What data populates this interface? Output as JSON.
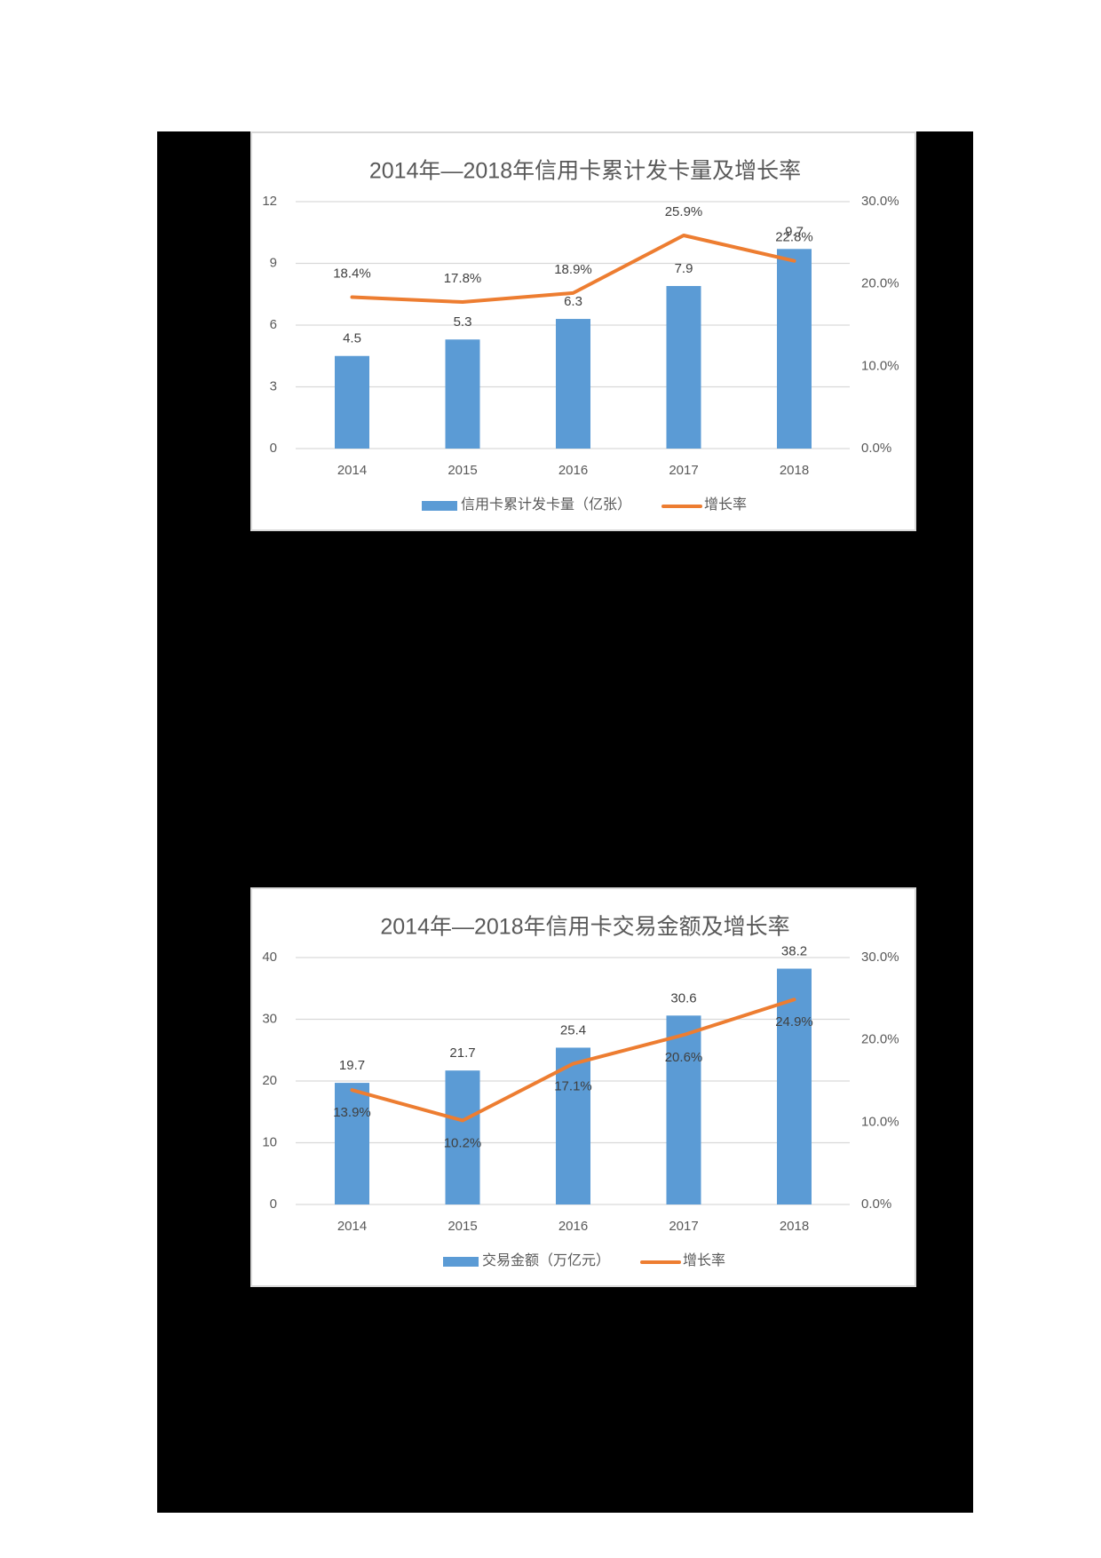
{
  "chart_data": [
    {
      "type": "bar+line",
      "title": "2014年—2018年信用卡累计发卡量及增长率",
      "categories": [
        "2014",
        "2015",
        "2016",
        "2017",
        "2018"
      ],
      "series": [
        {
          "name": "信用卡累计发卡量（亿张）",
          "type": "bar",
          "axis": "left",
          "color": "#5b9bd5",
          "values": [
            4.5,
            5.3,
            6.3,
            7.9,
            9.7
          ],
          "labels": [
            "4.5",
            "5.3",
            "6.3",
            "7.9",
            "9.7"
          ]
        },
        {
          "name": "增长率",
          "type": "line",
          "axis": "right",
          "color": "#ed7d31",
          "values": [
            18.4,
            17.8,
            18.9,
            25.9,
            22.8
          ],
          "labels": [
            "18.4%",
            "17.8%",
            "18.9%",
            "25.9%",
            "22.8%"
          ]
        }
      ],
      "left_axis": {
        "ticks": [
          "0",
          "3",
          "6",
          "9",
          "12"
        ],
        "ylim": [
          0,
          12
        ]
      },
      "right_axis": {
        "ticks": [
          "0.0%",
          "10.0%",
          "20.0%",
          "30.0%"
        ],
        "ylim": [
          0,
          30
        ]
      },
      "grid": true,
      "legend_position": "bottom"
    },
    {
      "type": "bar+line",
      "title": "2014年—2018年信用卡交易金额及增长率",
      "categories": [
        "2014",
        "2015",
        "2016",
        "2017",
        "2018"
      ],
      "series": [
        {
          "name": "交易金额（万亿元）",
          "type": "bar",
          "axis": "left",
          "color": "#5b9bd5",
          "values": [
            19.7,
            21.7,
            25.4,
            30.6,
            38.2
          ],
          "labels": [
            "19.7",
            "21.7",
            "25.4",
            "30.6",
            "38.2"
          ]
        },
        {
          "name": "增长率",
          "type": "line",
          "axis": "right",
          "color": "#ed7d31",
          "values": [
            13.9,
            10.2,
            17.1,
            20.6,
            24.9
          ],
          "labels": [
            "13.9%",
            "10.2%",
            "17.1%",
            "20.6%",
            "24.9%"
          ]
        }
      ],
      "left_axis": {
        "ticks": [
          "0",
          "10",
          "20",
          "30",
          "40"
        ],
        "ylim": [
          0,
          40
        ]
      },
      "right_axis": {
        "ticks": [
          "0.0%",
          "10.0%",
          "20.0%",
          "30.0%"
        ],
        "ylim": [
          0,
          30
        ]
      },
      "grid": true,
      "legend_position": "bottom"
    }
  ],
  "colors": {
    "bar": "#5b9bd5",
    "line": "#ed7d31",
    "grid": "#d9d9d9",
    "text": "#595959",
    "panel": "#000000"
  }
}
